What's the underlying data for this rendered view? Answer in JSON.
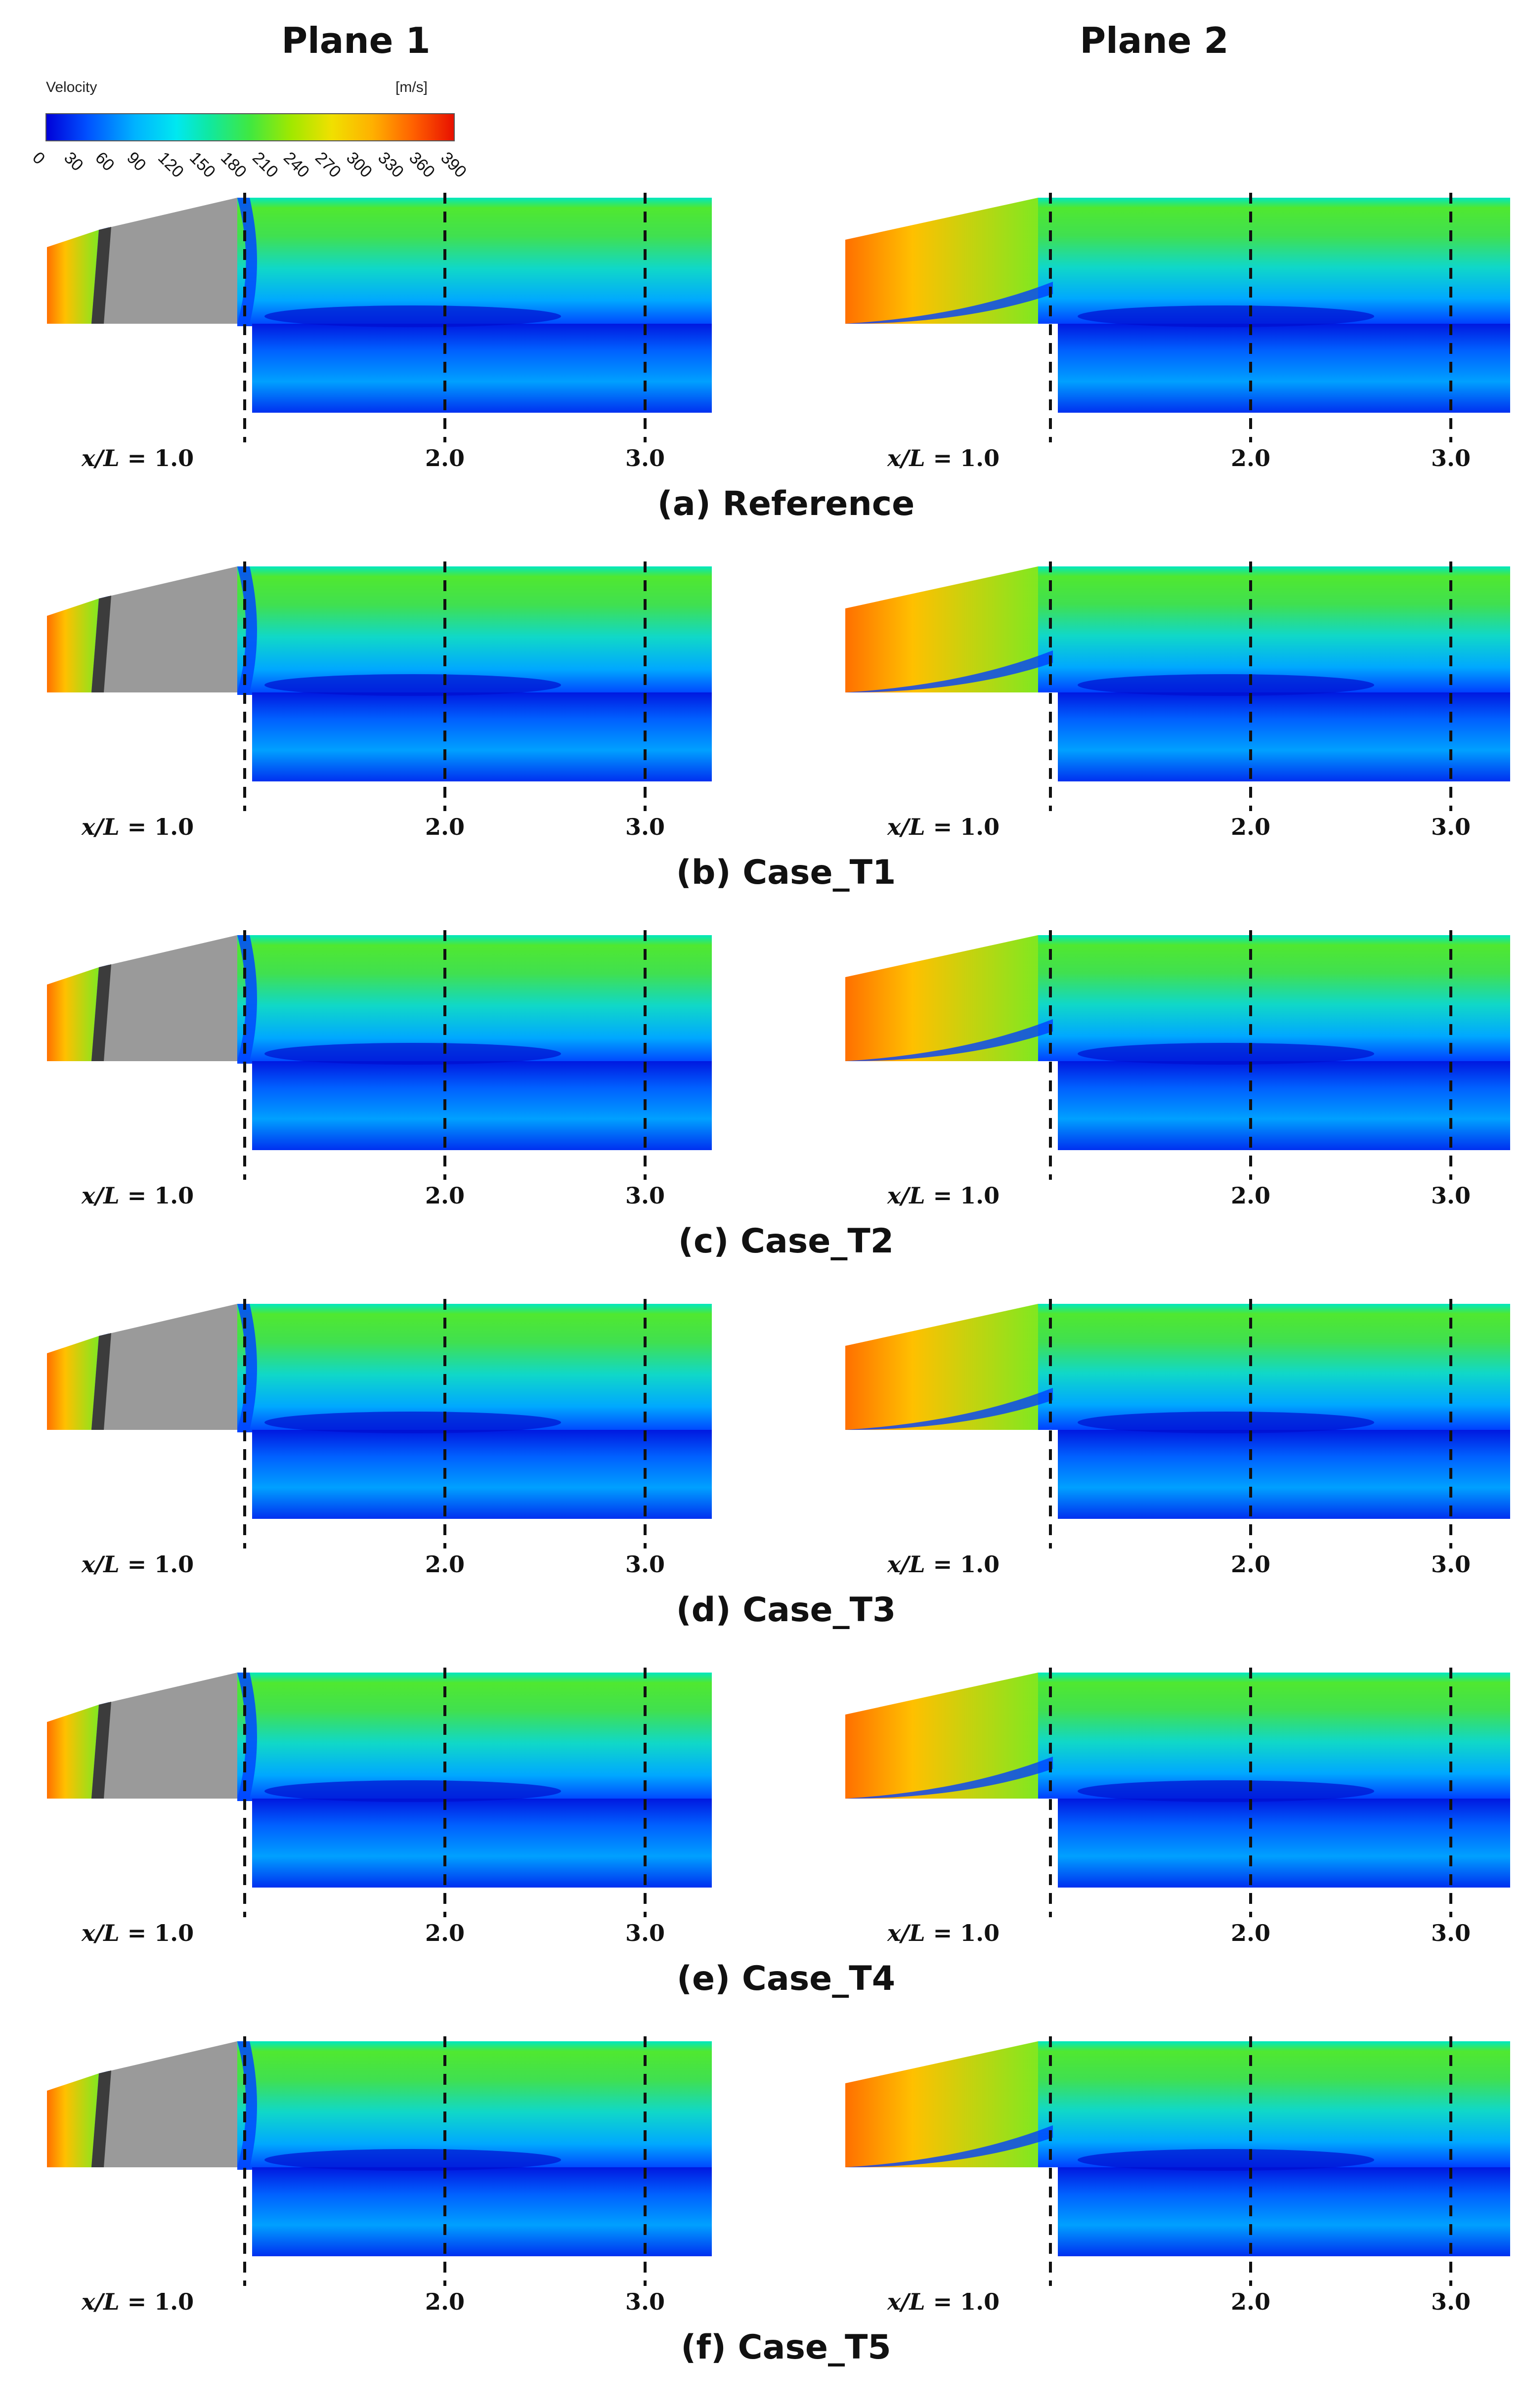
{
  "columns": [
    "Plane 1",
    "Plane 2"
  ],
  "legend": {
    "title": "Velocity",
    "unit": "[m/s]",
    "ticks": [
      "0",
      "30",
      "60",
      "90",
      "120",
      "150",
      "180",
      "210",
      "240",
      "270",
      "300",
      "330",
      "360",
      "390"
    ],
    "colors": [
      "#0000d8",
      "#0050ff",
      "#00b4ff",
      "#00e8f0",
      "#10e8a0",
      "#40e840",
      "#a0e800",
      "#f0e000",
      "#ffb000",
      "#ff6000",
      "#e81000"
    ]
  },
  "x_ticks": {
    "first_prefix": "x/L = ",
    "values": [
      "1.0",
      "2.0",
      "3.0"
    ]
  },
  "cases": [
    {
      "caption": "(a) Reference"
    },
    {
      "caption": "(b) Case_T1"
    },
    {
      "caption": "(c) Case_T2"
    },
    {
      "caption": "(d) Case_T3"
    },
    {
      "caption": "(e) Case_T4"
    },
    {
      "caption": "(f) Case_T5"
    }
  ]
}
